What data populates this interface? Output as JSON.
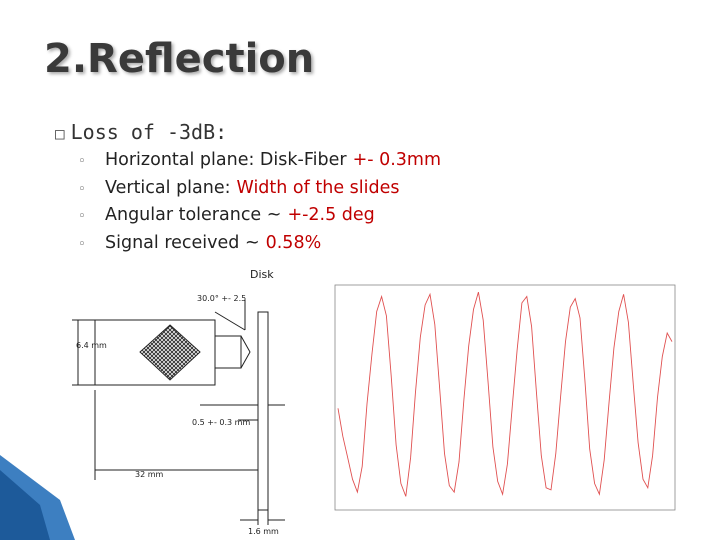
{
  "header": {
    "title": "2.Reflection"
  },
  "main_bullet": "Loss of -3d​B:",
  "sub_bullets": [
    {
      "label": "Horizontal plane: Disk-Fiber",
      "value": "+- 0.3mm"
    },
    {
      "label": "Vertical plane:",
      "value": "Width of the slides"
    },
    {
      "label": "Angular tolerance ~",
      "value": "+-2.5 deg"
    },
    {
      "label": "Signal received ~",
      "value": "0.58%"
    }
  ],
  "diagram": {
    "disk_label": "Disk",
    "angle_label": "30.0° +- 2.5",
    "height_label": "6.4 mm",
    "gap_label": "0.5 +- 0.3 mm",
    "length_label": "32 mm",
    "thickness_label": "1.6 mm"
  },
  "plot": {
    "color": "#e05050",
    "values": [
      45,
      32,
      22,
      12,
      6,
      18,
      47,
      70,
      90,
      97,
      88,
      60,
      28,
      10,
      4,
      22,
      52,
      78,
      93,
      98,
      84,
      54,
      24,
      9,
      6,
      20,
      49,
      74,
      91,
      99,
      86,
      57,
      27,
      11,
      5,
      19,
      46,
      72,
      94,
      97,
      83,
      52,
      23,
      8,
      7,
      24,
      51,
      76,
      92,
      96,
      87,
      58,
      26,
      10,
      5,
      21,
      48,
      73,
      90,
      98,
      85,
      56,
      29,
      12,
      8,
      23,
      50,
      69,
      80,
      76
    ]
  }
}
